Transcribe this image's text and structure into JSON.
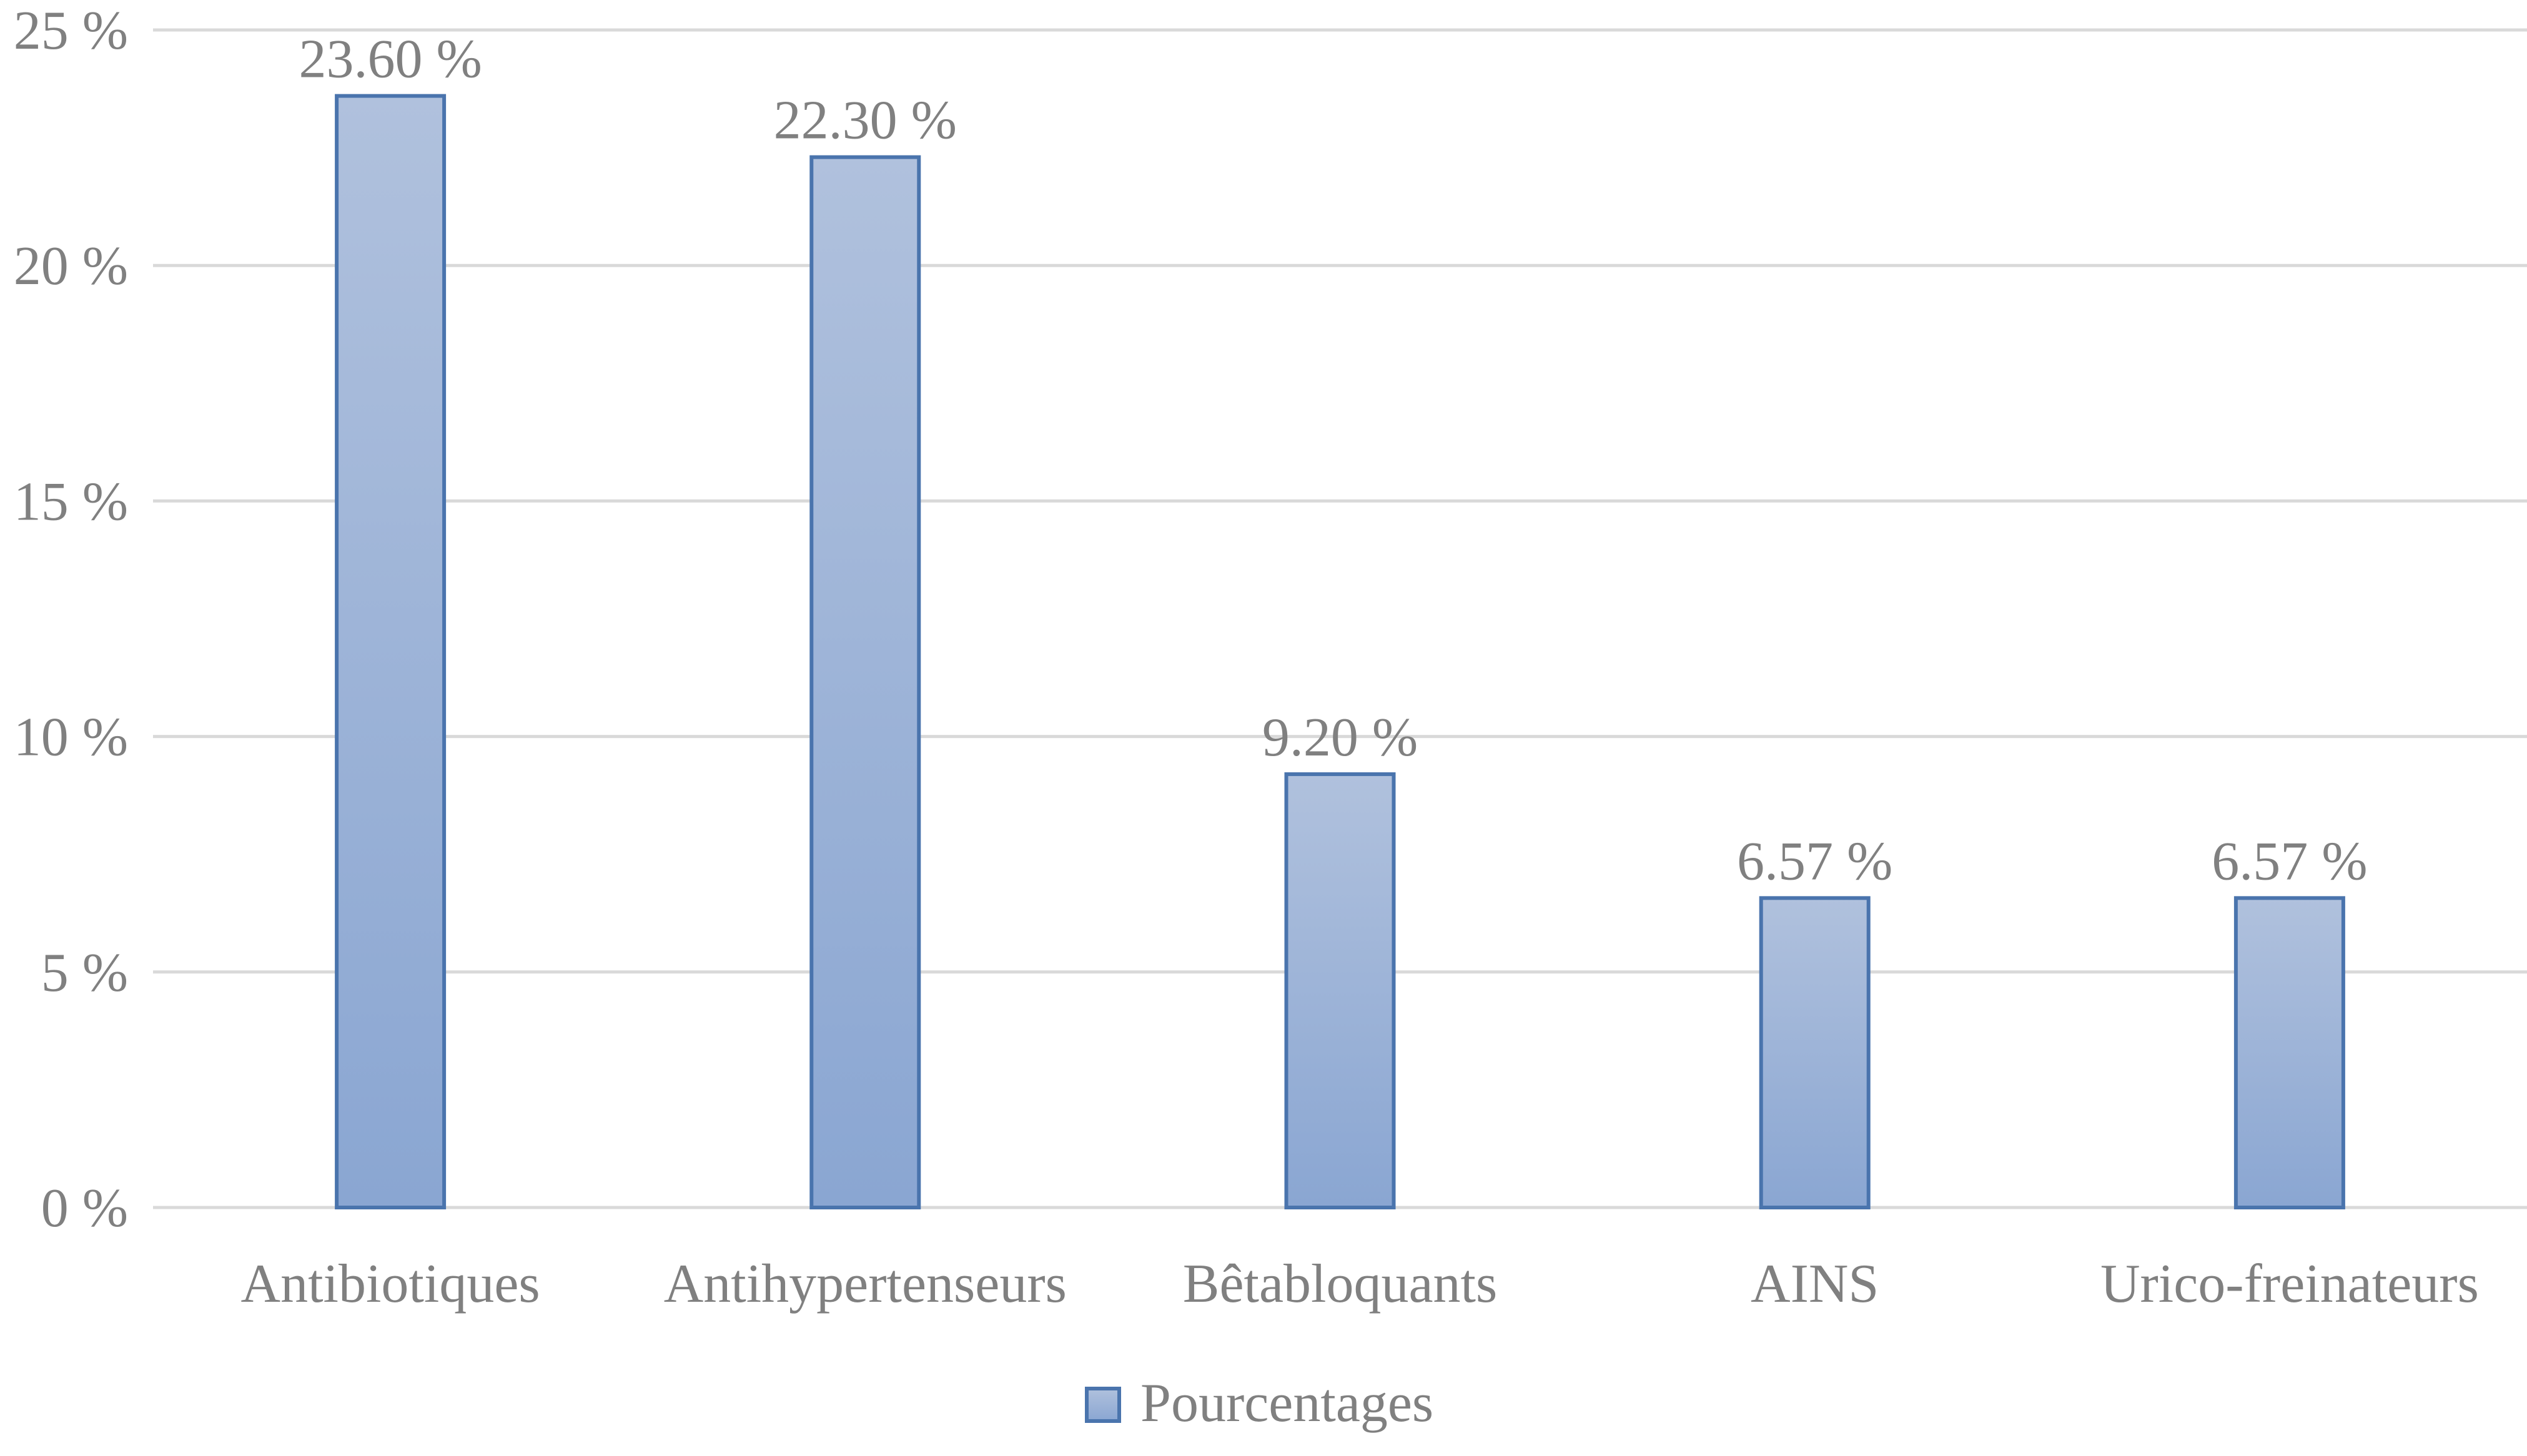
{
  "chart_data": {
    "type": "bar",
    "categories": [
      "Antibiotiques",
      "Antihypertenseurs",
      "Bêtabloquants",
      "AINS",
      "Urico-freinateurs"
    ],
    "series": [
      {
        "name": "Pourcentages",
        "values": [
          23.6,
          22.3,
          9.2,
          6.57,
          6.57
        ],
        "data_labels": [
          "23.60 %",
          "22.30 %",
          "9.20 %",
          "6.57 %",
          "6.57 %"
        ]
      }
    ],
    "y_ticks": [
      0,
      5,
      10,
      15,
      20,
      25
    ],
    "y_tick_labels": [
      "0 %",
      "5 %",
      "10 %",
      "15 %",
      "20 %",
      "25 %"
    ],
    "ylim": [
      0,
      25
    ],
    "grid": true,
    "legend_position": "bottom-center",
    "colors": {
      "bar_fill_top": "#b0c1dd",
      "bar_fill_bottom": "#8aa6d2",
      "bar_stroke": "#4a74ad",
      "gridline": "#d9d9d9",
      "text": "#808080"
    }
  }
}
